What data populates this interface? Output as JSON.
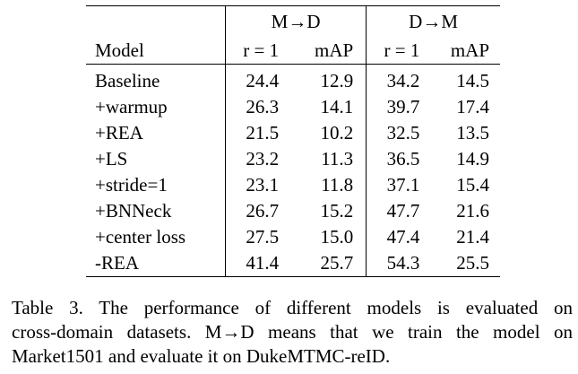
{
  "table": {
    "groups": [
      "M→D",
      "D→M"
    ],
    "columns": [
      "Model",
      "r = 1",
      "mAP",
      "r = 1",
      "mAP"
    ],
    "rows": [
      {
        "model": "Baseline",
        "md_r1": "24.4",
        "md_map": "12.9",
        "dm_r1": "34.2",
        "dm_map": "14.5"
      },
      {
        "model": "+warmup",
        "md_r1": "26.3",
        "md_map": "14.1",
        "dm_r1": "39.7",
        "dm_map": "17.4"
      },
      {
        "model": "+REA",
        "md_r1": "21.5",
        "md_map": "10.2",
        "dm_r1": "32.5",
        "dm_map": "13.5"
      },
      {
        "model": "+LS",
        "md_r1": "23.2",
        "md_map": "11.3",
        "dm_r1": "36.5",
        "dm_map": "14.9"
      },
      {
        "model": "+stride=1",
        "md_r1": "23.1",
        "md_map": "11.8",
        "dm_r1": "37.1",
        "dm_map": "15.4"
      },
      {
        "model": "+BNNeck",
        "md_r1": "26.7",
        "md_map": "15.2",
        "dm_r1": "47.7",
        "dm_map": "21.6"
      },
      {
        "model": "+center loss",
        "md_r1": "27.5",
        "md_map": "15.0",
        "dm_r1": "47.4",
        "dm_map": "21.4"
      },
      {
        "model": "-REA",
        "md_r1": "41.4",
        "md_map": "25.7",
        "dm_r1": "54.3",
        "dm_map": "25.5"
      }
    ]
  },
  "caption": {
    "lines": [
      "Table 3. The performance of different models is evaluated on",
      "cross-domain datasets.  M→D means that we train the model on",
      "Market1501 and evaluate it on DukeMTMC-reID."
    ]
  }
}
